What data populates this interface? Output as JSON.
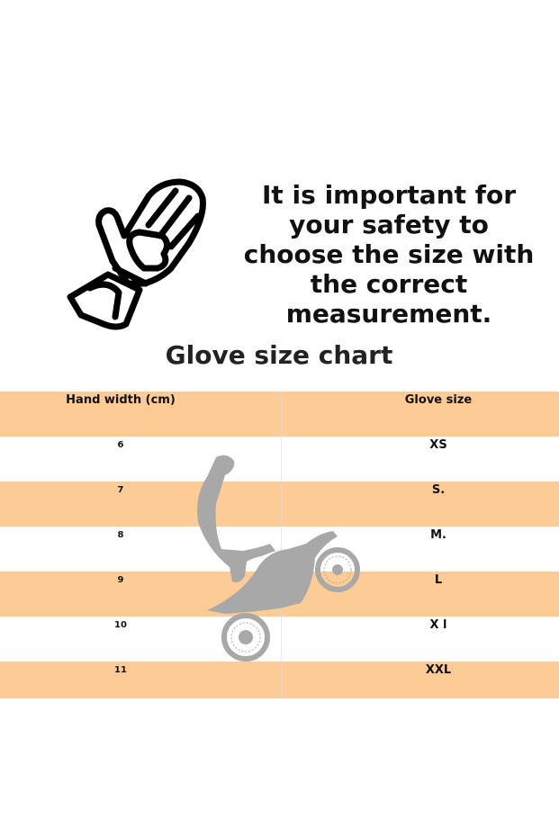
{
  "headline": [
    "It is important for",
    "your safety to",
    "choose the size with",
    "the correct",
    "measurement."
  ],
  "title": "Glove size chart",
  "table": {
    "headers": [
      "Hand width (cm)",
      "Glove size"
    ],
    "rows": [
      [
        "6",
        "XS"
      ],
      [
        "7",
        "S."
      ],
      [
        "8",
        "M."
      ],
      [
        "9",
        "L"
      ],
      [
        "10",
        "X l"
      ],
      [
        "11",
        "XXL"
      ]
    ]
  },
  "colors": {
    "band": "#fccb96",
    "silhouette": "#a8a8a8"
  },
  "icons": [
    "glove-icon",
    "motocross-rider-silhouette"
  ]
}
